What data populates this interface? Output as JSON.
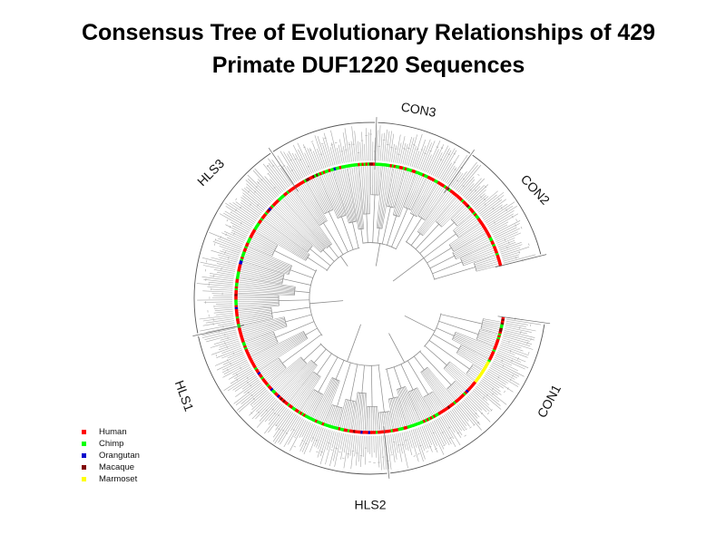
{
  "title": {
    "line1": "Consensus Tree of Evolutionary Relationships of 429",
    "line2": "Primate DUF1220 Sequences"
  },
  "clades": [
    {
      "name": "CON1"
    },
    {
      "name": "CON2"
    },
    {
      "name": "CON3"
    },
    {
      "name": "HLS3"
    },
    {
      "name": "HLS1"
    },
    {
      "name": "HLS2"
    }
  ],
  "legend": [
    {
      "label": "Human",
      "color": "#ff0000"
    },
    {
      "label": "Chimp",
      "color": "#00ff00"
    },
    {
      "label": "Orangutan",
      "color": "#0000cc"
    },
    {
      "label": "Macaque",
      "color": "#800000"
    },
    {
      "label": "Marmoset",
      "color": "#ffff00"
    }
  ],
  "colors": {
    "branch": "#8c8c8c",
    "outer_tips": "#a8a8a8",
    "ring_dominant": "#ff0000"
  }
}
